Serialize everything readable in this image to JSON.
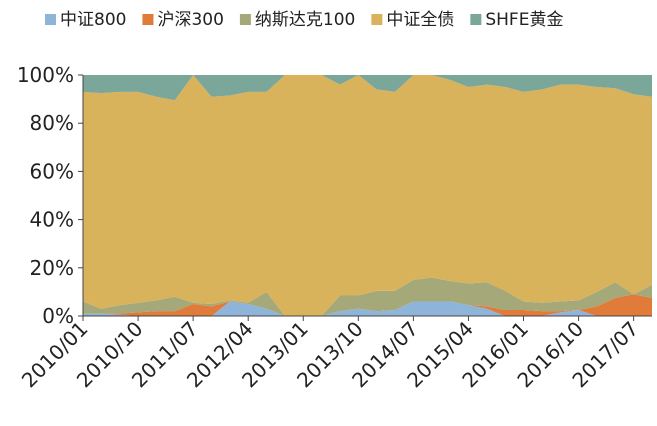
{
  "chart_data": {
    "type": "stacked-area",
    "categories": [
      "2010/01",
      null,
      null,
      "2010/10",
      null,
      null,
      "2011/07",
      null,
      null,
      "2012/04",
      null,
      null,
      "2013/01",
      null,
      null,
      "2013/10",
      null,
      null,
      "2014/07",
      null,
      null,
      "2015/04",
      null,
      null,
      "2016/01",
      null,
      null,
      "2016/10",
      null,
      null,
      "2017/07",
      null
    ],
    "series": [
      {
        "name": "中证800",
        "color": "#8fb4d9",
        "values": [
          1,
          1,
          0.5,
          0,
          0,
          0,
          0,
          0,
          6,
          5,
          3,
          0,
          0,
          0,
          2,
          3,
          2,
          2.5,
          6,
          6,
          6,
          4.5,
          3,
          0,
          0,
          0,
          1.5,
          2.5,
          0,
          0,
          0,
          0
        ]
      },
      {
        "name": "沪深300",
        "color": "#e07b39",
        "values": [
          0,
          0,
          0.5,
          1.5,
          2,
          2,
          5,
          4,
          0,
          0,
          0,
          0,
          0,
          0,
          0,
          0,
          0,
          0,
          0,
          0,
          0,
          0,
          1,
          2.5,
          2.5,
          2,
          0.5,
          0,
          4,
          7.5,
          9,
          7.5
        ]
      },
      {
        "name": "纳斯达克100",
        "color": "#a5a97a",
        "values": [
          5,
          2,
          3.5,
          4,
          4.5,
          6,
          0.5,
          1,
          0.5,
          0.5,
          7,
          0,
          0,
          0,
          6.5,
          5.5,
          8.5,
          8,
          9,
          10,
          8.5,
          9,
          10,
          8,
          3.5,
          3.5,
          4,
          4,
          6,
          6.5,
          0,
          5.5
        ]
      },
      {
        "name": "中证全债",
        "color": "#d9b25c",
        "values": [
          87,
          89.5,
          88.5,
          87.5,
          84.5,
          81.5,
          94.5,
          86,
          85,
          87.5,
          83,
          100,
          100,
          100,
          87.5,
          91.5,
          83.5,
          82.5,
          85,
          84,
          83.5,
          81.5,
          82,
          84.5,
          87,
          88.5,
          90,
          89.5,
          85,
          80.5,
          83,
          78
        ]
      },
      {
        "name": "SHFE黄金",
        "color": "#7aa79a",
        "values": [
          7,
          7.5,
          7,
          7,
          9,
          10.5,
          0,
          9,
          8.5,
          7,
          7,
          0,
          0,
          0,
          4,
          0,
          6,
          7,
          0,
          0,
          2,
          5,
          4,
          5,
          7,
          6,
          4,
          4,
          5,
          5.5,
          8,
          9
        ]
      }
    ],
    "ylim": [
      0,
      100
    ],
    "yticks": [
      {
        "value": 0,
        "label": "0%"
      },
      {
        "value": 20,
        "label": "20%"
      },
      {
        "value": 40,
        "label": "40%"
      },
      {
        "value": 60,
        "label": "60%"
      },
      {
        "value": 80,
        "label": "80%"
      },
      {
        "value": 100,
        "label": "100%"
      }
    ],
    "legend": "top"
  }
}
